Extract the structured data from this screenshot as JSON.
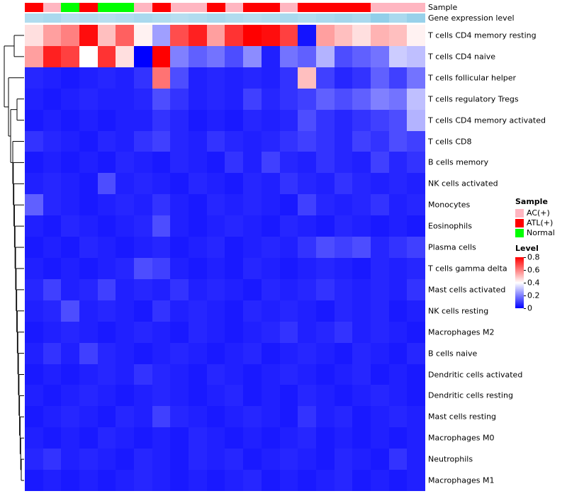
{
  "annotations": {
    "sample_label": "Sample",
    "expression_label": "Gene expression level"
  },
  "legend": {
    "sample_title": "Sample",
    "sample_items": [
      {
        "label": "AC(+)",
        "color": "#FFB6C1"
      },
      {
        "label": "ATL(+)",
        "color": "#FF0000"
      },
      {
        "label": "Normal",
        "color": "#00FF00"
      }
    ],
    "level_title": "Level",
    "level_ticks": [
      "0.8",
      "0.6",
      "0.4",
      "0.2",
      "0"
    ]
  },
  "colors": {
    "sample": {
      "AC(+)": "#FFB6C1",
      "ATL(+)": "#FF0000",
      "Normal": "#00FF00"
    },
    "expression_low": "#CFE9F5",
    "expression_high": "#55B4DC",
    "level_gradient": [
      "#FF0000",
      "#FFFFFF",
      "#0000FF"
    ]
  },
  "chart_data": {
    "type": "heatmap",
    "title": "",
    "xlabel": "",
    "ylabel": "",
    "colormap": "blue-white-red",
    "value_range": [
      0,
      0.8
    ],
    "legend_position": "right",
    "n_columns": 22,
    "rows": [
      "T cells CD4 memory resting",
      "T cells CD4 naive",
      "T cells follicular helper",
      "T cells regulatory Tregs",
      "T cells CD4 memory activated",
      "T cells CD8",
      "B cells memory",
      "NK cells activated",
      "Monocytes",
      "Eosinophils",
      "Plasma cells",
      "T cells gamma delta",
      "Mast cells activated",
      "NK cells resting",
      "Macrophages M2",
      "B cells naive",
      "Dendritic cells activated",
      "Dendritic cells resting",
      "Mast cells resting",
      "Macrophages M0",
      "Neutrophils",
      "Macrophages M1"
    ],
    "column_sample": [
      "ATL(+)",
      "AC(+)",
      "Normal",
      "ATL(+)",
      "Normal",
      "Normal",
      "AC(+)",
      "ATL(+)",
      "AC(+)",
      "AC(+)",
      "ATL(+)",
      "AC(+)",
      "ATL(+)",
      "ATL(+)",
      "AC(+)",
      "ATL(+)",
      "ATL(+)",
      "ATL(+)",
      "ATL(+)",
      "AC(+)",
      "AC(+)",
      "AC(+)"
    ],
    "column_expression_level": [
      0.25,
      0.3,
      0.2,
      0.25,
      0.2,
      0.25,
      0.3,
      0.25,
      0.2,
      0.25,
      0.3,
      0.25,
      0.2,
      0.25,
      0.3,
      0.25,
      0.3,
      0.35,
      0.3,
      0.5,
      0.3,
      0.45
    ],
    "matrix": [
      [
        0.45,
        0.55,
        0.6,
        0.78,
        0.5,
        0.65,
        0.42,
        0.25,
        0.68,
        0.75,
        0.55,
        0.72,
        0.8,
        0.78,
        0.7,
        0.03,
        0.55,
        0.5,
        0.45,
        0.52,
        0.5,
        0.42
      ],
      [
        0.55,
        0.75,
        0.7,
        0.4,
        0.72,
        0.45,
        0.0,
        0.8,
        0.2,
        0.15,
        0.18,
        0.12,
        0.22,
        0.05,
        0.18,
        0.15,
        0.28,
        0.12,
        0.15,
        0.18,
        0.32,
        0.3
      ],
      [
        0.06,
        0.05,
        0.04,
        0.05,
        0.06,
        0.05,
        0.08,
        0.62,
        0.12,
        0.05,
        0.06,
        0.05,
        0.06,
        0.05,
        0.08,
        0.5,
        0.1,
        0.06,
        0.08,
        0.15,
        0.1,
        0.18
      ],
      [
        0.05,
        0.04,
        0.05,
        0.06,
        0.05,
        0.05,
        0.06,
        0.12,
        0.08,
        0.05,
        0.06,
        0.05,
        0.1,
        0.06,
        0.08,
        0.1,
        0.15,
        0.12,
        0.15,
        0.2,
        0.18,
        0.3
      ],
      [
        0.04,
        0.05,
        0.04,
        0.05,
        0.04,
        0.05,
        0.05,
        0.08,
        0.06,
        0.04,
        0.05,
        0.04,
        0.06,
        0.05,
        0.06,
        0.12,
        0.08,
        0.06,
        0.08,
        0.1,
        0.12,
        0.28
      ],
      [
        0.08,
        0.06,
        0.05,
        0.04,
        0.06,
        0.05,
        0.08,
        0.1,
        0.06,
        0.05,
        0.08,
        0.06,
        0.05,
        0.06,
        0.08,
        0.1,
        0.08,
        0.06,
        0.1,
        0.08,
        0.12,
        0.1
      ],
      [
        0.04,
        0.05,
        0.04,
        0.05,
        0.04,
        0.06,
        0.05,
        0.04,
        0.06,
        0.05,
        0.04,
        0.08,
        0.05,
        0.1,
        0.06,
        0.05,
        0.08,
        0.06,
        0.05,
        0.1,
        0.06,
        0.08
      ],
      [
        0.05,
        0.06,
        0.05,
        0.04,
        0.12,
        0.05,
        0.06,
        0.05,
        0.04,
        0.06,
        0.05,
        0.04,
        0.06,
        0.05,
        0.08,
        0.06,
        0.05,
        0.08,
        0.06,
        0.05,
        0.06,
        0.05
      ],
      [
        0.15,
        0.06,
        0.05,
        0.04,
        0.05,
        0.06,
        0.05,
        0.08,
        0.05,
        0.04,
        0.06,
        0.05,
        0.06,
        0.05,
        0.04,
        0.1,
        0.06,
        0.05,
        0.06,
        0.08,
        0.05,
        0.06
      ],
      [
        0.05,
        0.04,
        0.06,
        0.05,
        0.04,
        0.05,
        0.06,
        0.12,
        0.05,
        0.04,
        0.05,
        0.06,
        0.05,
        0.04,
        0.06,
        0.05,
        0.04,
        0.06,
        0.05,
        0.04,
        0.05,
        0.04
      ],
      [
        0.04,
        0.05,
        0.04,
        0.06,
        0.05,
        0.04,
        0.05,
        0.06,
        0.04,
        0.05,
        0.06,
        0.04,
        0.05,
        0.06,
        0.05,
        0.08,
        0.12,
        0.1,
        0.12,
        0.06,
        0.08,
        0.1
      ],
      [
        0.05,
        0.04,
        0.05,
        0.04,
        0.05,
        0.06,
        0.12,
        0.1,
        0.05,
        0.04,
        0.05,
        0.04,
        0.06,
        0.05,
        0.04,
        0.05,
        0.06,
        0.05,
        0.04,
        0.06,
        0.05,
        0.06
      ],
      [
        0.06,
        0.1,
        0.05,
        0.06,
        0.1,
        0.05,
        0.06,
        0.05,
        0.08,
        0.05,
        0.06,
        0.05,
        0.04,
        0.06,
        0.05,
        0.06,
        0.08,
        0.06,
        0.05,
        0.06,
        0.05,
        0.08
      ],
      [
        0.05,
        0.06,
        0.12,
        0.05,
        0.06,
        0.05,
        0.04,
        0.08,
        0.05,
        0.06,
        0.05,
        0.04,
        0.06,
        0.05,
        0.06,
        0.05,
        0.04,
        0.06,
        0.05,
        0.06,
        0.04,
        0.05
      ],
      [
        0.04,
        0.05,
        0.06,
        0.05,
        0.04,
        0.05,
        0.06,
        0.05,
        0.04,
        0.06,
        0.05,
        0.04,
        0.05,
        0.06,
        0.08,
        0.05,
        0.06,
        0.08,
        0.05,
        0.06,
        0.05,
        0.04
      ],
      [
        0.05,
        0.08,
        0.05,
        0.1,
        0.06,
        0.05,
        0.04,
        0.05,
        0.06,
        0.05,
        0.04,
        0.05,
        0.06,
        0.04,
        0.05,
        0.06,
        0.05,
        0.04,
        0.06,
        0.05,
        0.04,
        0.06
      ],
      [
        0.04,
        0.05,
        0.04,
        0.05,
        0.06,
        0.05,
        0.08,
        0.06,
        0.05,
        0.04,
        0.06,
        0.05,
        0.04,
        0.05,
        0.06,
        0.05,
        0.04,
        0.05,
        0.06,
        0.04,
        0.05,
        0.04
      ],
      [
        0.05,
        0.04,
        0.05,
        0.06,
        0.05,
        0.04,
        0.05,
        0.06,
        0.05,
        0.04,
        0.05,
        0.06,
        0.04,
        0.05,
        0.04,
        0.06,
        0.05,
        0.04,
        0.05,
        0.06,
        0.05,
        0.04
      ],
      [
        0.04,
        0.05,
        0.06,
        0.05,
        0.04,
        0.06,
        0.05,
        0.1,
        0.06,
        0.05,
        0.04,
        0.05,
        0.06,
        0.05,
        0.04,
        0.08,
        0.05,
        0.06,
        0.04,
        0.05,
        0.06,
        0.05
      ],
      [
        0.05,
        0.04,
        0.05,
        0.04,
        0.06,
        0.05,
        0.04,
        0.05,
        0.04,
        0.06,
        0.05,
        0.04,
        0.05,
        0.04,
        0.05,
        0.06,
        0.04,
        0.05,
        0.04,
        0.05,
        0.04,
        0.05
      ],
      [
        0.06,
        0.08,
        0.05,
        0.06,
        0.05,
        0.04,
        0.06,
        0.05,
        0.04,
        0.06,
        0.05,
        0.06,
        0.04,
        0.05,
        0.06,
        0.05,
        0.04,
        0.06,
        0.05,
        0.04,
        0.08,
        0.05
      ],
      [
        0.04,
        0.05,
        0.04,
        0.05,
        0.04,
        0.05,
        0.06,
        0.05,
        0.04,
        0.05,
        0.04,
        0.05,
        0.06,
        0.04,
        0.05,
        0.04,
        0.05,
        0.06,
        0.04,
        0.05,
        0.04,
        0.05
      ]
    ]
  }
}
